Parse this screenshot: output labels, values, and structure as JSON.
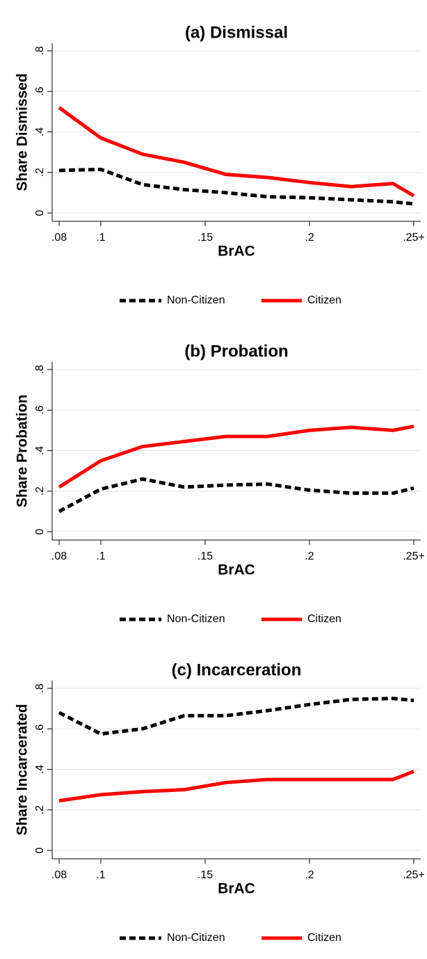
{
  "chart_data": [
    {
      "type": "line",
      "title": "(a) Dismissal",
      "xlabel": "BrAC",
      "ylabel": "Share Dismissed",
      "x": [
        0.08,
        0.1,
        0.12,
        0.14,
        0.16,
        0.18,
        0.2,
        0.22,
        0.24,
        0.25
      ],
      "series": [
        {
          "name": "Non-Citizen",
          "color": "#000000",
          "line_style": "dashed",
          "values": [
            0.21,
            0.215,
            0.14,
            0.115,
            0.1,
            0.08,
            0.075,
            0.065,
            0.055,
            0.045
          ]
        },
        {
          "name": "Citizen",
          "color": "#ff0000",
          "line_style": "solid",
          "values": [
            0.52,
            0.37,
            0.29,
            0.25,
            0.19,
            0.175,
            0.15,
            0.13,
            0.145,
            0.085
          ]
        }
      ],
      "xlim": [
        0.08,
        0.25
      ],
      "ylim": [
        0,
        0.8
      ],
      "xticks": [
        {
          "value": 0.08,
          "label": ".08"
        },
        {
          "value": 0.1,
          "label": ".1"
        },
        {
          "value": 0.15,
          "label": ".15"
        },
        {
          "value": 0.2,
          "label": ".2"
        },
        {
          "value": 0.25,
          "label": ".25+"
        }
      ],
      "yticks": [
        0,
        {
          "value": 0.2,
          "label": ".2"
        },
        {
          "value": 0.4,
          "label": ".4"
        },
        {
          "value": 0.6,
          "label": ".6"
        },
        {
          "value": 0.8,
          "label": ".8"
        }
      ],
      "grid": true
    },
    {
      "type": "line",
      "title": "(b) Probation",
      "xlabel": "BrAC",
      "ylabel": "Share Probation",
      "x": [
        0.08,
        0.1,
        0.12,
        0.14,
        0.16,
        0.18,
        0.2,
        0.22,
        0.24,
        0.25
      ],
      "series": [
        {
          "name": "Non-Citizen",
          "color": "#000000",
          "line_style": "dashed",
          "values": [
            0.1,
            0.21,
            0.26,
            0.22,
            0.23,
            0.235,
            0.205,
            0.19,
            0.19,
            0.215
          ]
        },
        {
          "name": "Citizen",
          "color": "#ff0000",
          "line_style": "solid",
          "values": [
            0.22,
            0.35,
            0.42,
            0.445,
            0.47,
            0.47,
            0.5,
            0.515,
            0.5,
            0.52
          ]
        }
      ],
      "xlim": [
        0.08,
        0.25
      ],
      "ylim": [
        0,
        0.8
      ],
      "xticks": [
        {
          "value": 0.08,
          "label": ".08"
        },
        {
          "value": 0.1,
          "label": ".1"
        },
        {
          "value": 0.15,
          "label": ".15"
        },
        {
          "value": 0.2,
          "label": ".2"
        },
        {
          "value": 0.25,
          "label": ".25+"
        }
      ],
      "yticks": [
        0,
        {
          "value": 0.2,
          "label": ".2"
        },
        {
          "value": 0.4,
          "label": ".4"
        },
        {
          "value": 0.6,
          "label": ".6"
        },
        {
          "value": 0.8,
          "label": ".8"
        }
      ],
      "grid": true
    },
    {
      "type": "line",
      "title": "(c) Incarceration",
      "xlabel": "BrAC",
      "ylabel": "Share Incarcerated",
      "x": [
        0.08,
        0.1,
        0.12,
        0.14,
        0.16,
        0.18,
        0.2,
        0.22,
        0.24,
        0.25
      ],
      "series": [
        {
          "name": "Non-Citizen",
          "color": "#000000",
          "line_style": "dashed",
          "values": [
            0.68,
            0.575,
            0.6,
            0.665,
            0.665,
            0.69,
            0.72,
            0.745,
            0.75,
            0.74
          ]
        },
        {
          "name": "Citizen",
          "color": "#ff0000",
          "line_style": "solid",
          "values": [
            0.245,
            0.275,
            0.29,
            0.3,
            0.335,
            0.35,
            0.35,
            0.35,
            0.35,
            0.39
          ]
        }
      ],
      "xlim": [
        0.08,
        0.25
      ],
      "ylim": [
        0,
        0.8
      ],
      "xticks": [
        {
          "value": 0.08,
          "label": ".08"
        },
        {
          "value": 0.1,
          "label": ".1"
        },
        {
          "value": 0.15,
          "label": ".15"
        },
        {
          "value": 0.2,
          "label": ".2"
        },
        {
          "value": 0.25,
          "label": ".25+"
        }
      ],
      "yticks": [
        0,
        {
          "value": 0.2,
          "label": ".2"
        },
        {
          "value": 0.4,
          "label": ".4"
        },
        {
          "value": 0.6,
          "label": ".6"
        },
        {
          "value": 0.8,
          "label": ".8"
        }
      ],
      "grid": true
    }
  ]
}
